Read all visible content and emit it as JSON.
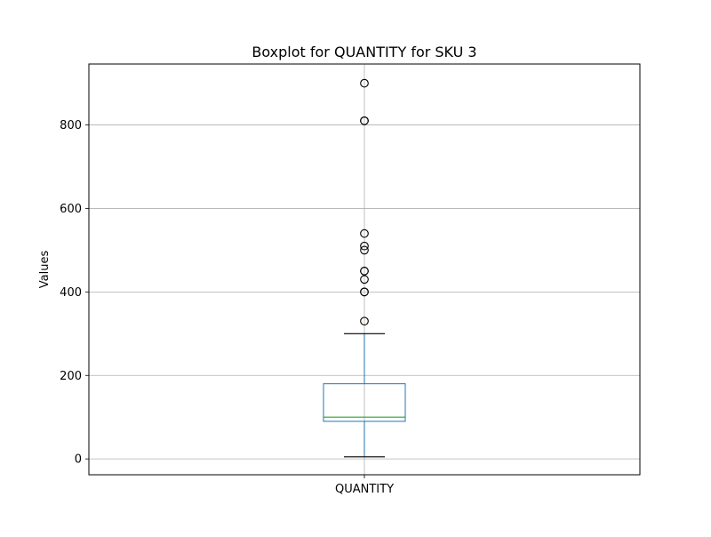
{
  "chart_data": {
    "type": "boxplot",
    "title": "Boxplot for QUANTITY for SKU 3",
    "xlabel": "",
    "ylabel": "Values",
    "categories": [
      "QUANTITY"
    ],
    "boxes": [
      {
        "category": "QUANTITY",
        "whisker_low": 5,
        "q1": 90,
        "median": 100,
        "q3": 180,
        "whisker_high": 300,
        "outliers": [
          330,
          400,
          400,
          430,
          450,
          450,
          500,
          510,
          540,
          810,
          810,
          900
        ]
      }
    ],
    "yticks": [
      0,
      200,
      400,
      600,
      800
    ],
    "ylim": [
      -38,
      946
    ],
    "grid": true,
    "legend": "none",
    "colors": {
      "box": "#1f77b4",
      "median": "#2ca02c",
      "whisker": "#1f77b4",
      "cap": "#000000",
      "outlier_edge": "#000000",
      "grid": "#b0b0b0",
      "axes": "#000000"
    }
  }
}
